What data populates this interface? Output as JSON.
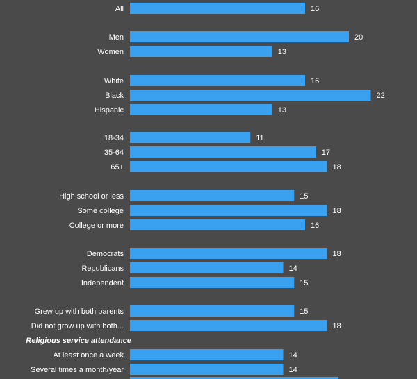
{
  "colors": {
    "background": "#4a4a4a",
    "bar": "#3aa0f0",
    "text": "#ffffff"
  },
  "chart_data": {
    "type": "bar",
    "orientation": "horizontal",
    "title": "",
    "xlabel": "",
    "ylabel": "",
    "grid": false,
    "categories": [
      "All",
      "Men",
      "Women",
      "White",
      "Black",
      "Hispanic",
      "18-34",
      "35-64",
      "65+",
      "High school or less",
      "Some college",
      "College or more",
      "Democrats",
      "Republicans",
      "Independent",
      "Grew up with both parents",
      "Did not grow up with both...",
      "At least once a week",
      "Several times a month/year"
    ],
    "values": [
      16,
      20,
      13,
      16,
      22,
      13,
      11,
      17,
      18,
      15,
      18,
      16,
      18,
      14,
      15,
      15,
      18,
      14,
      14
    ],
    "section_labels": [
      "Religious service attendance"
    ]
  }
}
